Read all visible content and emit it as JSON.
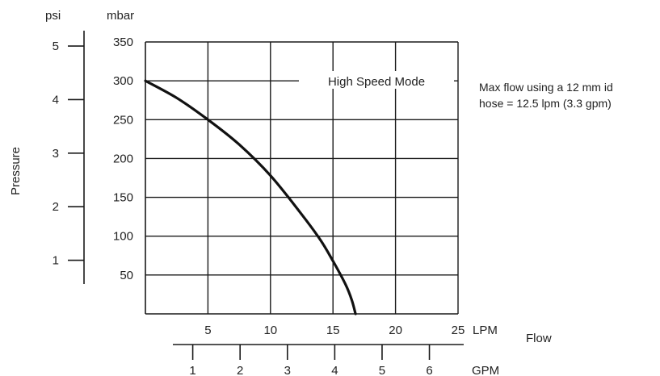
{
  "chart_data": {
    "type": "line",
    "xlabel": "Flow",
    "ylabel": "Pressure",
    "x_unit_primary": "LPM",
    "x_unit_secondary": "GPM",
    "y_unit_primary": "mbar",
    "y_unit_secondary": "psi",
    "xlim": [
      0,
      25
    ],
    "ylim": [
      0,
      350
    ],
    "x_ticks": [
      5,
      10,
      15,
      20,
      25
    ],
    "y_ticks": [
      50,
      100,
      150,
      200,
      250,
      300,
      350
    ],
    "gpm_ticks": [
      1,
      2,
      3,
      4,
      5,
      6
    ],
    "psi_ticks": [
      1,
      2,
      3,
      4,
      5
    ],
    "grid": true,
    "series": [
      {
        "name": "High Speed Mode",
        "x": [
          0,
          2.5,
          5,
          7.5,
          10,
          12.5,
          14,
          15,
          16,
          16.5,
          16.8
        ],
        "y": [
          300,
          278,
          250,
          218,
          178,
          128,
          95,
          68,
          38,
          18,
          0
        ]
      }
    ],
    "annotation": "Max flow using a 12 mm id hose = 12.5 lpm (3.3 gpm)",
    "annotation_lines": [
      "Max flow using a 12 mm id",
      "hose = 12.5 lpm (3.3 gpm)"
    ]
  }
}
